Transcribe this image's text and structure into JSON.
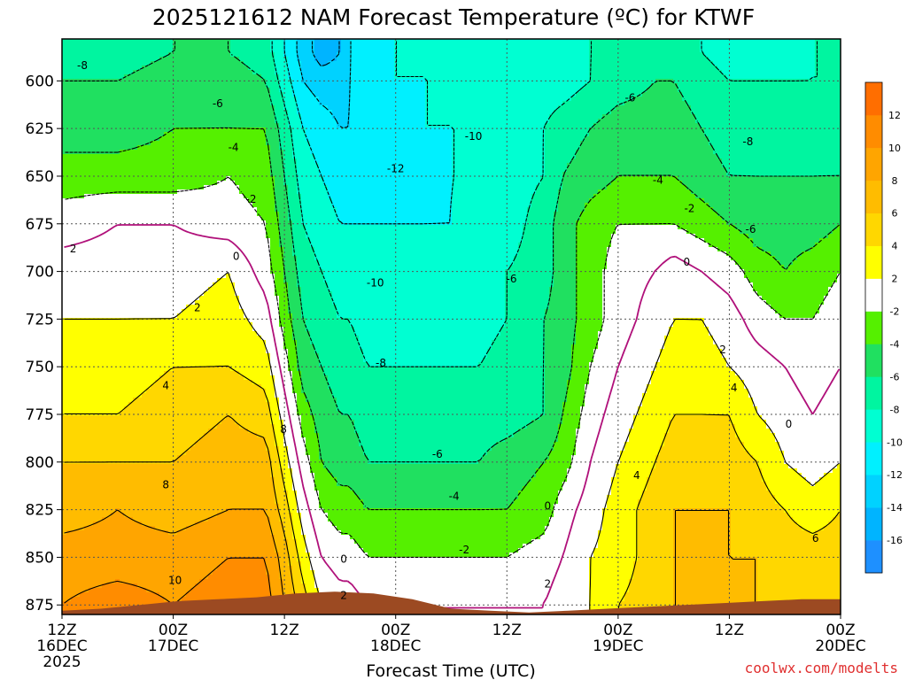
{
  "title": "2025121612 NAM Forecast Temperature (ºC) for KTWF",
  "credit": "coolwx.com/modelts",
  "chart_data": {
    "type": "heatmap",
    "title": "2025121612 NAM Forecast Temperature (ºC) for KTWF",
    "xlabel": "Forecast Time (UTC)",
    "ylabel": "",
    "x_unit": "hours from 12Z 16DEC 2025",
    "x_range": [
      0,
      84
    ],
    "y_range_hPa": [
      880,
      578
    ],
    "y_ticks": [
      600,
      625,
      650,
      675,
      700,
      725,
      750,
      775,
      800,
      825,
      850,
      875
    ],
    "x_ticks": [
      {
        "hour": 0,
        "lines": [
          "12Z",
          "16DEC",
          "2025"
        ]
      },
      {
        "hour": 12,
        "lines": [
          "00Z",
          "17DEC"
        ]
      },
      {
        "hour": 24,
        "lines": [
          "12Z"
        ]
      },
      {
        "hour": 36,
        "lines": [
          "00Z",
          "18DEC"
        ]
      },
      {
        "hour": 48,
        "lines": [
          "12Z"
        ]
      },
      {
        "hour": 60,
        "lines": [
          "00Z",
          "19DEC"
        ]
      },
      {
        "hour": 72,
        "lines": [
          "12Z"
        ]
      },
      {
        "hour": 84,
        "lines": [
          "00Z",
          "20DEC"
        ]
      }
    ],
    "colorbar": {
      "bins": [
        {
          "min": -18,
          "max": -16,
          "color": "#1e90ff"
        },
        {
          "min": -16,
          "max": -14,
          "color": "#00b4ff"
        },
        {
          "min": -14,
          "max": -12,
          "color": "#00d2ff"
        },
        {
          "min": -12,
          "max": -10,
          "color": "#00f0ff"
        },
        {
          "min": -10,
          "max": -8,
          "color": "#00ffd2"
        },
        {
          "min": -8,
          "max": -6,
          "color": "#00f5a0"
        },
        {
          "min": -6,
          "max": -4,
          "color": "#20e060"
        },
        {
          "min": -4,
          "max": -2,
          "color": "#55f000"
        },
        {
          "min": -2,
          "max": 2,
          "color": "#ffffff"
        },
        {
          "min": 2,
          "max": 4,
          "color": "#ffff00"
        },
        {
          "min": 4,
          "max": 6,
          "color": "#ffd700"
        },
        {
          "min": 6,
          "max": 8,
          "color": "#ffbc00"
        },
        {
          "min": 8,
          "max": 10,
          "color": "#ffa500"
        },
        {
          "min": 10,
          "max": 12,
          "color": "#ff8c00"
        },
        {
          "min": 12,
          "max": 14,
          "color": "#ff6e00"
        }
      ],
      "tick_labels": [
        "-16",
        "-14",
        "-12",
        "-10",
        "-8",
        "-6",
        "-4",
        "-2",
        "2",
        "4",
        "6",
        "8",
        "10",
        "12"
      ]
    },
    "freezing_line_color": "#b0107a",
    "terrain_color": "#9c4a22",
    "surface_pressure_hPa": [
      878,
      877,
      875,
      873,
      872,
      871,
      869,
      868,
      869,
      872,
      877,
      878,
      879,
      878,
      877,
      876,
      875,
      874,
      873,
      872,
      872
    ],
    "temperature_hours": [
      0,
      6,
      12,
      18,
      22,
      24,
      26,
      28,
      30,
      31,
      33,
      36,
      39,
      42,
      45,
      48,
      52,
      54,
      57,
      60,
      64,
      66,
      69,
      72,
      75,
      78,
      81,
      84
    ],
    "temperature_levels_hPa": [
      585,
      600,
      625,
      650,
      675,
      700,
      725,
      750,
      775,
      800,
      825,
      850,
      875
    ],
    "temperature_degC": [
      [
        -7,
        -7,
        -6,
        -6,
        -7,
        -10,
        -13,
        -15,
        -14,
        -12,
        -11,
        -10,
        -10,
        -10,
        -10,
        -9,
        -9,
        -9,
        -8,
        -8,
        -7,
        -7,
        -8,
        -9,
        -9,
        -9,
        -8,
        -8
      ],
      [
        -6,
        -6,
        -5,
        -5,
        -6,
        -9,
        -12,
        -13,
        -13,
        -12,
        -11,
        -10,
        -10,
        -10,
        -10,
        -9,
        -9,
        -9,
        -8,
        -7,
        -6,
        -6,
        -7,
        -8,
        -8,
        -8,
        -8,
        -8
      ],
      [
        -5,
        -5,
        -4,
        -4,
        -4,
        -7,
        -10,
        -11,
        -12,
        -12,
        -11,
        -11,
        -10,
        -10,
        -10,
        -9,
        -8,
        -7,
        -6,
        -5,
        -5,
        -5,
        -6,
        -7,
        -7,
        -7,
        -7,
        -7
      ],
      [
        -3,
        -3,
        -3,
        -2,
        -3,
        -6,
        -9,
        -10,
        -11,
        -11,
        -11,
        -11,
        -11,
        -10,
        -10,
        -9,
        -8,
        -6,
        -5,
        -4,
        -4,
        -4,
        -5,
        -6,
        -6,
        -6,
        -6,
        -6
      ],
      [
        -1,
        0,
        0,
        -1,
        -2,
        -5,
        -8,
        -9,
        -10,
        -10,
        -10,
        -10,
        -10,
        -10,
        -9,
        -9,
        -7,
        -5,
        -3,
        -2,
        -2,
        -2,
        -3,
        -4,
        -5,
        -5,
        -5,
        -4
      ],
      [
        1,
        1,
        1,
        2,
        -1,
        -4,
        -7,
        -8,
        -9,
        -9,
        -9,
        -9,
        -9,
        -9,
        -9,
        -8,
        -7,
        -5,
        -3,
        -1,
        0,
        1,
        0,
        -1,
        -3,
        -4,
        -3,
        -2
      ],
      [
        2,
        2,
        2,
        3,
        1,
        -3,
        -6,
        -7,
        -8,
        -8,
        -9,
        -9,
        -9,
        -9,
        -9,
        -8,
        -6,
        -5,
        -3,
        -1,
        1,
        2,
        2,
        1,
        -1,
        -2,
        -2,
        -1
      ],
      [
        3,
        3,
        4,
        4,
        3,
        -1,
        -5,
        -6,
        -7,
        -7,
        -8,
        -8,
        -8,
        -8,
        -8,
        -7,
        -6,
        -5,
        -2,
        0,
        2,
        3,
        3,
        2,
        1,
        0,
        -1,
        0
      ],
      [
        4,
        4,
        5,
        6,
        5,
        1,
        -3,
        -5,
        -6,
        -6,
        -7,
        -7,
        -7,
        -7,
        -7,
        -7,
        -6,
        -4,
        -1,
        1,
        3,
        4,
        4,
        4,
        2,
        1,
        0,
        1
      ],
      [
        6,
        6,
        6,
        7,
        7,
        3,
        -1,
        -4,
        -5,
        -5,
        -6,
        -6,
        -6,
        -6,
        -6,
        -5,
        -4,
        -3,
        0,
        2,
        4,
        5,
        5,
        5,
        4,
        2,
        1,
        2
      ],
      [
        7,
        8,
        7,
        8,
        8,
        5,
        1,
        -2,
        -3,
        -3,
        -4,
        -4,
        -4,
        -4,
        -4,
        -4,
        -3,
        -1,
        1,
        3,
        5,
        6,
        6,
        6,
        5,
        4,
        3,
        4
      ],
      [
        9,
        9,
        9,
        10,
        10,
        7,
        3,
        0,
        -1,
        -1,
        -2,
        -2,
        -2,
        -2,
        -2,
        -2,
        -1,
        0,
        2,
        3,
        5,
        6,
        6,
        6,
        6,
        5,
        5,
        5
      ],
      [
        10,
        11,
        10,
        11,
        11,
        8,
        5,
        2,
        1,
        1,
        0,
        0,
        0,
        0,
        0,
        0,
        0,
        1,
        2,
        4,
        5,
        6,
        6,
        6,
        6,
        6,
        6,
        6
      ]
    ],
    "contour_labels": [
      {
        "text": "-8",
        "hour": 2.2,
        "p": 592
      },
      {
        "text": "-6",
        "hour": 16.8,
        "p": 612
      },
      {
        "text": "-4",
        "hour": 18.5,
        "p": 635
      },
      {
        "text": "-2",
        "hour": 20.4,
        "p": 662
      },
      {
        "text": "2",
        "hour": 1.2,
        "p": 688
      },
      {
        "text": "0",
        "hour": 18.8,
        "p": 692
      },
      {
        "text": "2",
        "hour": 14.6,
        "p": 719
      },
      {
        "text": "4",
        "hour": 11.2,
        "p": 760
      },
      {
        "text": "8",
        "hour": 11.2,
        "p": 812
      },
      {
        "text": "10",
        "hour": 12.2,
        "p": 862
      },
      {
        "text": "8",
        "hour": 23.9,
        "p": 783
      },
      {
        "text": "-12",
        "hour": 36.0,
        "p": 646
      },
      {
        "text": "-10",
        "hour": 44.4,
        "p": 629
      },
      {
        "text": "-10",
        "hour": 33.8,
        "p": 706
      },
      {
        "text": "-8",
        "hour": 34.4,
        "p": 748
      },
      {
        "text": "-6",
        "hour": 40.5,
        "p": 796
      },
      {
        "text": "-4",
        "hour": 42.3,
        "p": 818
      },
      {
        "text": "-2",
        "hour": 43.4,
        "p": 846
      },
      {
        "text": "0",
        "hour": 30.4,
        "p": 851
      },
      {
        "text": "2",
        "hour": 30.4,
        "p": 870
      },
      {
        "text": "-6",
        "hour": 48.5,
        "p": 704
      },
      {
        "text": "-6",
        "hour": 61.3,
        "p": 609
      },
      {
        "text": "-4",
        "hour": 64.3,
        "p": 652
      },
      {
        "text": "-2",
        "hour": 67.7,
        "p": 667
      },
      {
        "text": "0",
        "hour": 67.4,
        "p": 695
      },
      {
        "text": "2",
        "hour": 71.3,
        "p": 741
      },
      {
        "text": "4",
        "hour": 72.5,
        "p": 761
      },
      {
        "text": "4",
        "hour": 62.0,
        "p": 807
      },
      {
        "text": "0",
        "hour": 52.4,
        "p": 823
      },
      {
        "text": "2",
        "hour": 52.4,
        "p": 864
      },
      {
        "text": "-8",
        "hour": 74.0,
        "p": 632
      },
      {
        "text": "-6",
        "hour": 74.3,
        "p": 678
      },
      {
        "text": "0",
        "hour": 78.4,
        "p": 780
      },
      {
        "text": "6",
        "hour": 81.3,
        "p": 840
      }
    ]
  }
}
